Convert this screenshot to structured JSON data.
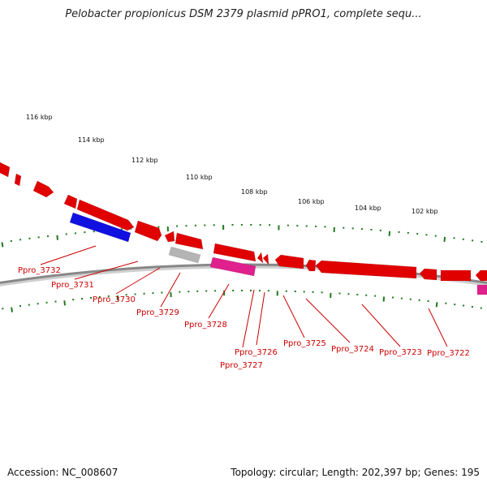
{
  "title": "Pelobacter propionicus DSM 2379 plasmid pPRO1, complete sequ...",
  "footer": {
    "accession": "Accession: NC_008607",
    "summary": "Topology: circular; Length: 202,397 bp; Genes: 195"
  },
  "colors": {
    "forward_gene": "#e00000",
    "reverse_gene": "#1010e0",
    "grey_gene": "#b4b4b4",
    "pink_gene": "#e0208c",
    "backbone": "#888888",
    "tick": "#1f7a1f",
    "label": "#cc0000"
  },
  "scale_ticks": [
    {
      "kbp": 116,
      "label": "116 kbp"
    },
    {
      "kbp": 114,
      "label": "114 kbp"
    },
    {
      "kbp": 112,
      "label": "112 kbp"
    },
    {
      "kbp": 110,
      "label": "110 kbp"
    },
    {
      "kbp": 108,
      "label": "108 kbp"
    },
    {
      "kbp": 106,
      "label": "106 kbp"
    },
    {
      "kbp": 104,
      "label": "104 kbp"
    },
    {
      "kbp": 102,
      "label": "102 kbp"
    }
  ],
  "gene_labels": [
    "Ppro_3732",
    "Ppro_3731",
    "Ppro_3730",
    "Ppro_3729",
    "Ppro_3728",
    "Ppro_3726",
    "Ppro_3727",
    "Ppro_3725",
    "Ppro_3724",
    "Ppro_3723",
    "Ppro_3722"
  ]
}
